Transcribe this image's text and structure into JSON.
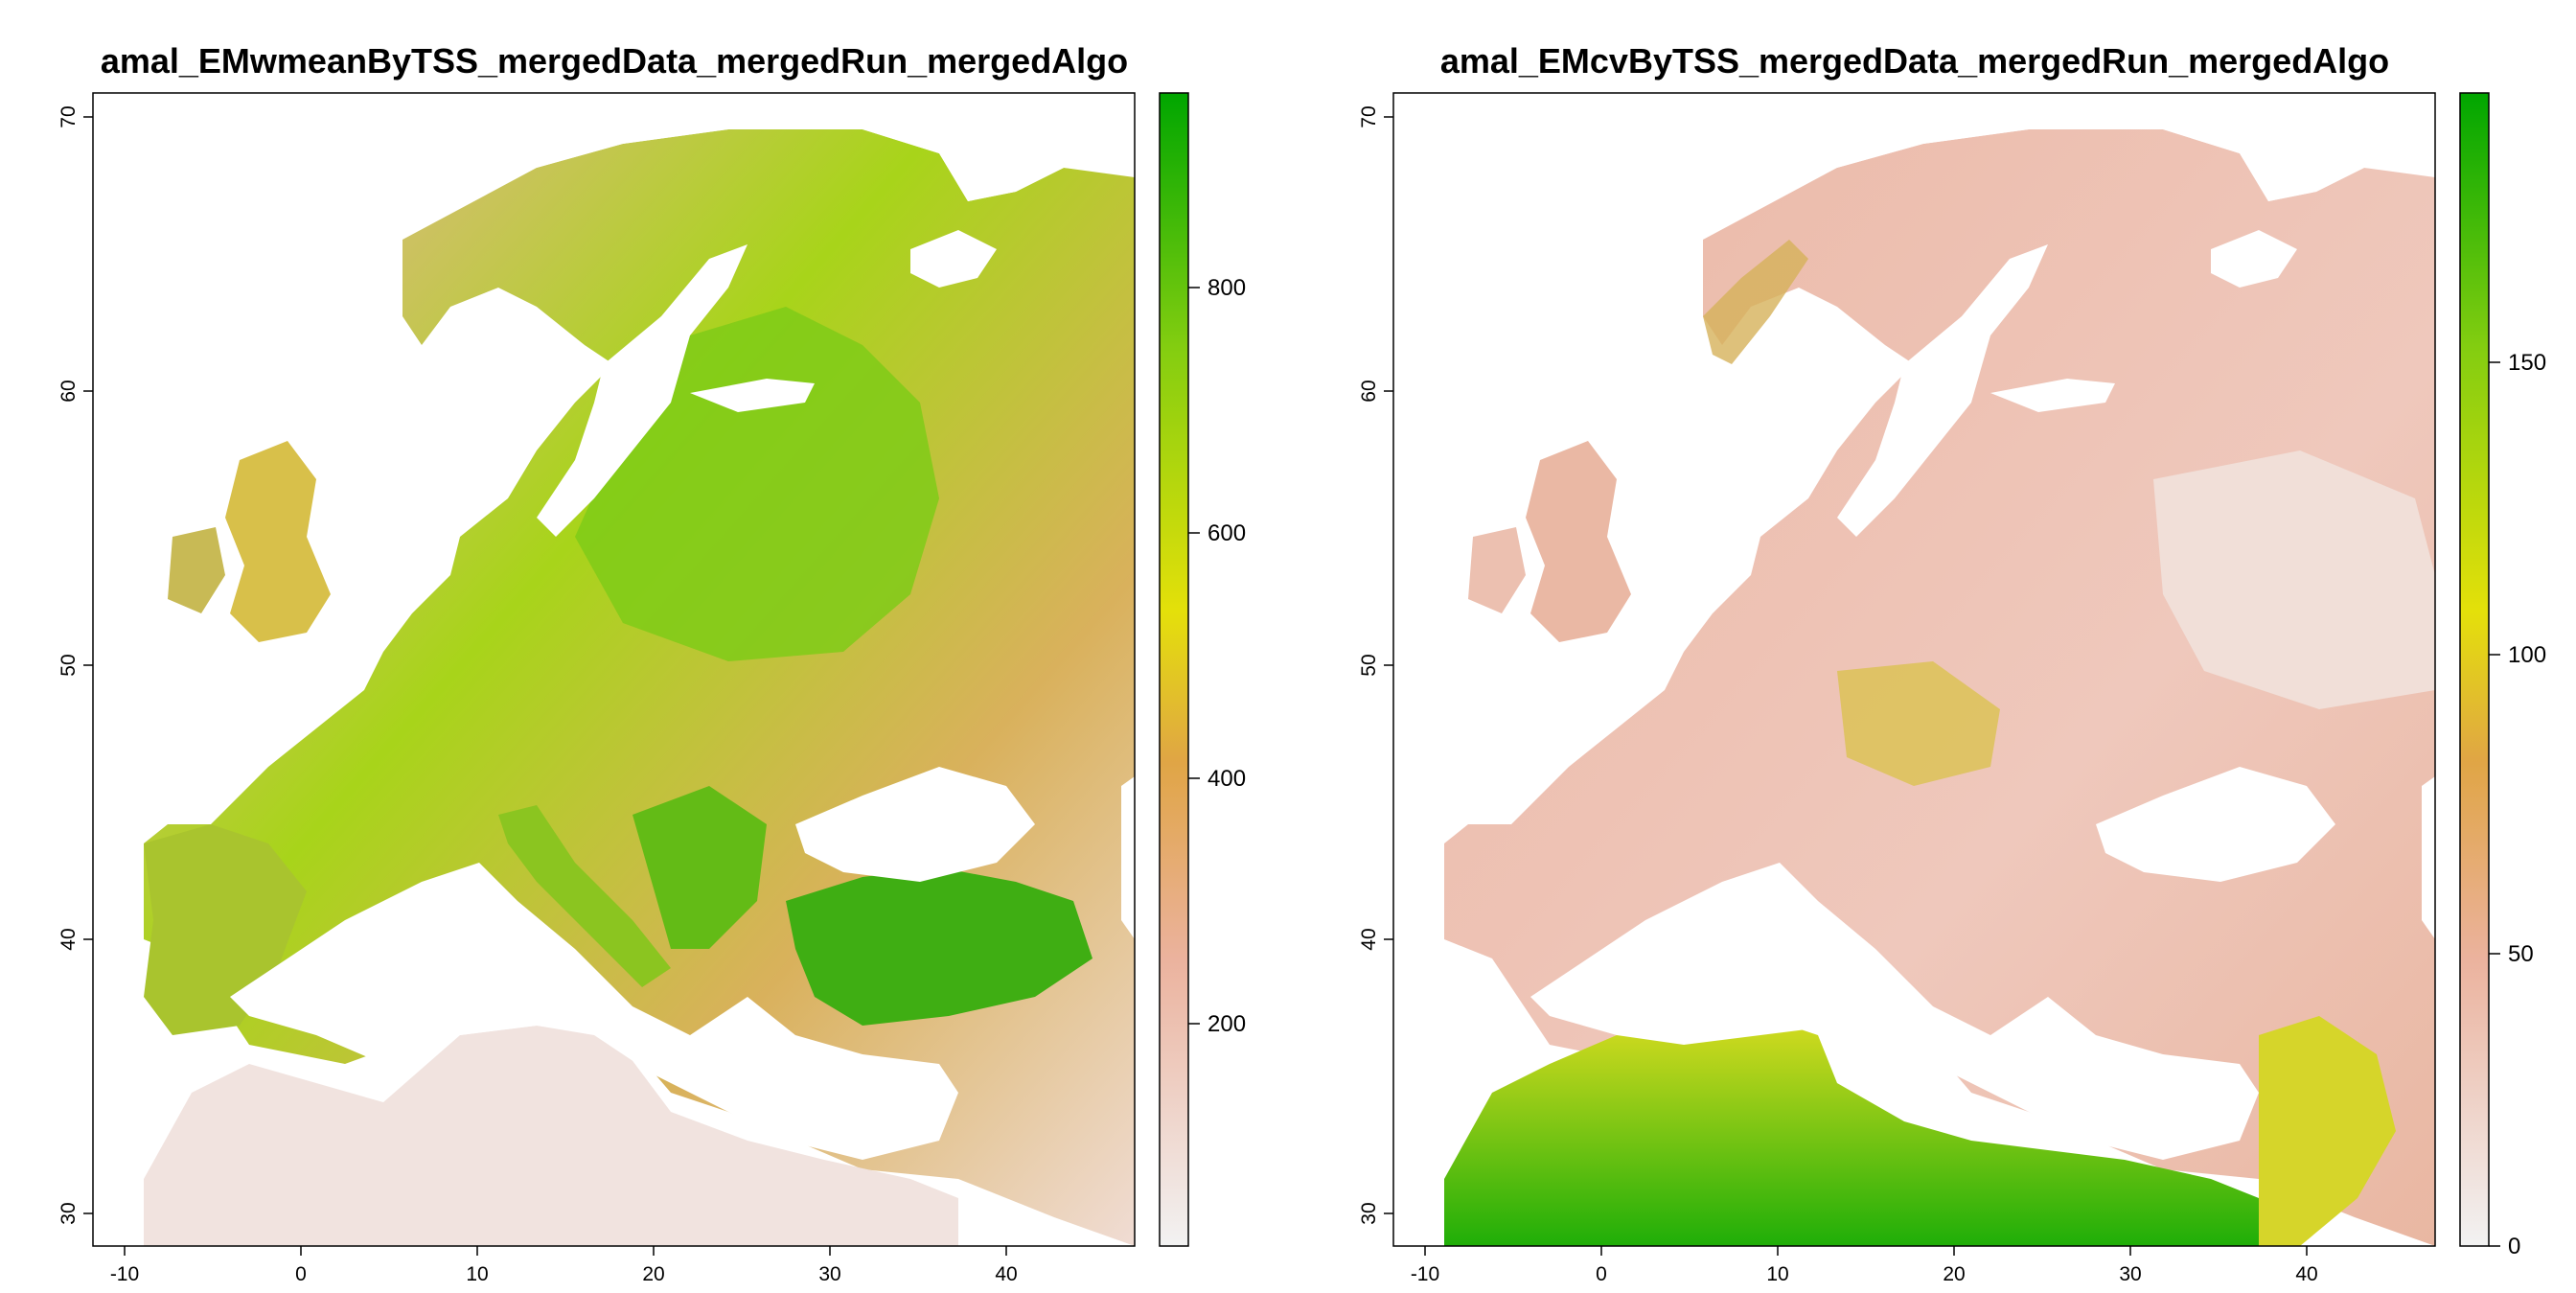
{
  "panels": [
    {
      "title": "amal_EMwmeanByTSS_mergedData_mergedRun_mergedAlgo",
      "x_ticks": [
        "-10",
        "0",
        "10",
        "20",
        "30",
        "40"
      ],
      "y_ticks": [
        "30",
        "40",
        "50",
        "60",
        "70"
      ],
      "colorbar": {
        "range": [
          0,
          940
        ],
        "ticks": [
          "200",
          "400",
          "600",
          "800"
        ],
        "colors": [
          "#f2f2f2",
          "#ebb29d",
          "#e0a545",
          "#e4e00a",
          "#83cd10",
          "#00a600"
        ]
      }
    },
    {
      "title": "amal_EMcvByTSS_mergedData_mergedRun_mergedAlgo",
      "x_ticks": [
        "-10",
        "0",
        "10",
        "20",
        "30",
        "40"
      ],
      "y_ticks": [
        "30",
        "40",
        "50",
        "60",
        "70"
      ],
      "colorbar": {
        "range": [
          0,
          197
        ],
        "ticks": [
          "0",
          "50",
          "100",
          "150"
        ],
        "colors": [
          "#f2f2f2",
          "#ebb29d",
          "#e0a545",
          "#e4e00a",
          "#83cd10",
          "#00a600"
        ]
      }
    }
  ],
  "chart_data": [
    {
      "type": "heatmap",
      "title": "amal_EMwmeanByTSS_mergedData_mergedRun_mergedAlgo",
      "xlim": [
        -11,
        47
      ],
      "ylim": [
        29,
        71
      ],
      "value_range": [
        0,
        940
      ],
      "colorbar_ticks": [
        200,
        400,
        600,
        800
      ],
      "legend": "right"
    },
    {
      "type": "heatmap",
      "title": "amal_EMcvByTSS_mergedData_mergedRun_mergedAlgo",
      "xlim": [
        -11,
        47
      ],
      "ylim": [
        29,
        71
      ],
      "value_range": [
        0,
        197
      ],
      "colorbar_ticks": [
        0,
        50,
        100,
        150
      ],
      "legend": "right"
    }
  ]
}
